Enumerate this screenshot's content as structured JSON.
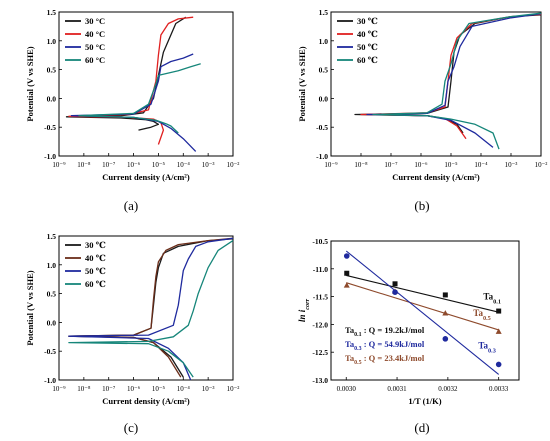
{
  "chart_data": [
    {
      "type": "line",
      "panel_label": "(a)",
      "xlabel": "Current density (A/cm²)",
      "ylabel": "Potential (V vs SHE)",
      "xscale": "log",
      "xlim": [
        -9,
        -2
      ],
      "ylim": [
        -1.0,
        1.5
      ],
      "xticks": [
        -9,
        -8,
        -7,
        -6,
        -5,
        -4,
        -3,
        -2
      ],
      "xtick_labels": [
        "10⁻⁹",
        "10⁻⁸",
        "10⁻⁷",
        "10⁻⁶",
        "10⁻⁵",
        "10⁻⁴",
        "10⁻³",
        "10⁻²"
      ],
      "yticks": [
        -1.0,
        -0.5,
        0.0,
        0.5,
        1.0,
        1.5
      ],
      "ytick_labels": [
        "-1.0",
        "-0.5",
        "0.0",
        "0.5",
        "1.0",
        "1.5"
      ],
      "legend_position": "top-left",
      "series": [
        {
          "name": "30 °C",
          "color": "#1a1a1a",
          "x": [
            -5.8,
            -5.3,
            -5.0,
            -5.2,
            -5.5,
            -6.5,
            -8.7,
            -6.5,
            -5.6,
            -5.2,
            -4.8,
            -4.3,
            -3.9
          ],
          "y": [
            -0.55,
            -0.5,
            -0.45,
            -0.4,
            -0.37,
            -0.34,
            -0.32,
            -0.3,
            -0.25,
            0.0,
            0.8,
            1.3,
            1.41
          ]
        },
        {
          "name": "40 °C",
          "color": "#e02020",
          "x": [
            -5.0,
            -4.8,
            -4.9,
            -5.2,
            -6.2,
            -8.6,
            -6.2,
            -5.4,
            -5.1,
            -5.0,
            -4.9,
            -4.6,
            -4.2,
            -3.6
          ],
          "y": [
            -0.8,
            -0.55,
            -0.42,
            -0.36,
            -0.33,
            -0.31,
            -0.28,
            -0.2,
            0.3,
            0.75,
            1.1,
            1.3,
            1.38,
            1.41
          ]
        },
        {
          "name": "50 °C",
          "color": "#1f2a9e",
          "x": [
            -3.5,
            -4.0,
            -4.5,
            -5.0,
            -6.0,
            -8.5,
            -6.0,
            -5.3,
            -5.0,
            -4.9,
            -4.5,
            -4.0,
            -3.6
          ],
          "y": [
            -0.92,
            -0.7,
            -0.52,
            -0.4,
            -0.33,
            -0.3,
            -0.27,
            -0.1,
            0.3,
            0.55,
            0.64,
            0.7,
            0.77
          ]
        },
        {
          "name": "60 °C",
          "color": "#16867a",
          "x": [
            -4.2,
            -4.5,
            -4.7,
            -5.1,
            -6.0,
            -8.2,
            -6.0,
            -5.4,
            -5.1,
            -5.0,
            -4.7,
            -4.2,
            -3.7,
            -3.3
          ],
          "y": [
            -0.6,
            -0.48,
            -0.44,
            -0.38,
            -0.33,
            -0.3,
            -0.26,
            -0.1,
            0.25,
            0.4,
            0.43,
            0.48,
            0.55,
            0.6
          ]
        }
      ]
    },
    {
      "type": "line",
      "panel_label": "(b)",
      "xlabel": "Current density (A/cm²)",
      "ylabel": "Potential (V vs SHE)",
      "xscale": "log",
      "xlim": [
        -9,
        -2
      ],
      "ylim": [
        -1.0,
        1.5
      ],
      "xticks": [
        -9,
        -8,
        -7,
        -6,
        -5,
        -4,
        -3,
        -2
      ],
      "xtick_labels": [
        "10⁻⁹",
        "10⁻⁸",
        "10⁻⁷",
        "10⁻⁶",
        "10⁻⁵",
        "10⁻⁴",
        "10⁻³",
        "10⁻²"
      ],
      "yticks": [
        -1.0,
        -0.5,
        0.0,
        0.5,
        1.0,
        1.5
      ],
      "ytick_labels": [
        "-1.0",
        "-0.5",
        "0.0",
        "0.5",
        "1.0",
        "1.5"
      ],
      "legend_position": "top-left",
      "series": [
        {
          "name": "30 ℃",
          "color": "#1a1a1a",
          "x": [
            -4.6,
            -4.8,
            -5.2,
            -5.8,
            -8.2,
            -5.8,
            -5.1,
            -5.0,
            -4.9,
            -4.7,
            -4.2,
            -3.0,
            -2.0
          ],
          "y": [
            -0.6,
            -0.45,
            -0.35,
            -0.3,
            -0.28,
            -0.26,
            -0.15,
            0.3,
            0.8,
            1.1,
            1.3,
            1.42,
            1.45
          ]
        },
        {
          "name": "40 ℃",
          "color": "#e02020",
          "x": [
            -4.5,
            -4.8,
            -5.2,
            -5.8,
            -8.0,
            -5.8,
            -5.2,
            -5.1,
            -5.0,
            -4.8,
            -4.3,
            -3.0,
            -2.0
          ],
          "y": [
            -0.7,
            -0.48,
            -0.35,
            -0.3,
            -0.28,
            -0.25,
            -0.15,
            0.3,
            0.75,
            1.05,
            1.3,
            1.42,
            1.46
          ]
        },
        {
          "name": "50 ℃",
          "color": "#1f2a9e",
          "x": [
            -3.6,
            -4.2,
            -5.0,
            -5.8,
            -7.8,
            -5.8,
            -5.2,
            -5.1,
            -4.9,
            -4.7,
            -4.3,
            -3.0,
            -2.0
          ],
          "y": [
            -0.85,
            -0.6,
            -0.38,
            -0.3,
            -0.28,
            -0.26,
            -0.12,
            0.3,
            0.55,
            0.9,
            1.25,
            1.4,
            1.47
          ]
        },
        {
          "name": "60 ℃",
          "color": "#16867a",
          "x": [
            -3.4,
            -3.6,
            -4.2,
            -5.0,
            -5.8,
            -7.6,
            -5.8,
            -5.3,
            -5.2,
            -5.0,
            -4.8,
            -4.4,
            -3.0,
            -2.0
          ],
          "y": [
            -0.88,
            -0.6,
            -0.45,
            -0.36,
            -0.3,
            -0.28,
            -0.25,
            -0.1,
            0.3,
            0.6,
            1.0,
            1.3,
            1.42,
            1.48
          ]
        }
      ]
    },
    {
      "type": "line",
      "panel_label": "(c)",
      "xlabel": "Current density (A/cm²)",
      "ylabel": "Potential (V vs SHE)",
      "xscale": "log",
      "xlim": [
        -9,
        -2
      ],
      "ylim": [
        -1.0,
        1.5
      ],
      "xticks": [
        -9,
        -8,
        -7,
        -6,
        -5,
        -4,
        -3,
        -2
      ],
      "xtick_labels": [
        "10⁻⁹",
        "10⁻⁸",
        "10⁻⁷",
        "10⁻⁶",
        "10⁻⁵",
        "10⁻⁴",
        "10⁻³",
        "10⁻²"
      ],
      "yticks": [
        -1.0,
        -0.5,
        0.0,
        0.5,
        1.0,
        1.5
      ],
      "ytick_labels": [
        "-1.0",
        "-0.5",
        "0.0",
        "0.5",
        "1.0",
        "1.5"
      ],
      "legend_position": "top-left",
      "series": [
        {
          "name": "30 ℃",
          "color": "#1a1a1a",
          "x": [
            -4.0,
            -4.5,
            -5.2,
            -6.0,
            -8.6,
            -6.0,
            -5.3,
            -5.2,
            -5.1,
            -5.0,
            -4.8,
            -4.2,
            -3.0,
            -2.0
          ],
          "y": [
            -0.95,
            -0.6,
            -0.35,
            -0.26,
            -0.24,
            -0.22,
            -0.1,
            0.3,
            0.7,
            0.95,
            1.2,
            1.32,
            1.42,
            1.45
          ]
        },
        {
          "name": "40 ℃",
          "color": "#6b2e1a",
          "x": [
            -4.1,
            -4.6,
            -5.2,
            -6.0,
            -8.6,
            -6.0,
            -5.3,
            -5.2,
            -5.1,
            -5.0,
            -4.7,
            -4.2,
            -3.0,
            -2.0
          ],
          "y": [
            -0.95,
            -0.6,
            -0.35,
            -0.26,
            -0.24,
            -0.22,
            -0.1,
            0.4,
            0.8,
            1.05,
            1.25,
            1.35,
            1.42,
            1.46
          ]
        },
        {
          "name": "50 ℃",
          "color": "#1f2a9e",
          "x": [
            -3.7,
            -4.0,
            -4.6,
            -5.4,
            -8.6,
            -5.4,
            -4.4,
            -4.2,
            -4.1,
            -4.0,
            -3.8,
            -3.5,
            -3.0,
            -2.0
          ],
          "y": [
            -1.0,
            -0.7,
            -0.45,
            -0.28,
            -0.24,
            -0.22,
            -0.05,
            0.3,
            0.6,
            0.9,
            1.1,
            1.32,
            1.4,
            1.46
          ]
        },
        {
          "name": "60 ℃",
          "color": "#16867a",
          "x": [
            -3.6,
            -4.0,
            -4.6,
            -5.4,
            -8.6,
            -5.4,
            -4.4,
            -3.8,
            -3.6,
            -3.4,
            -3.0,
            -2.6,
            -2.0
          ],
          "y": [
            -0.95,
            -0.7,
            -0.5,
            -0.37,
            -0.35,
            -0.33,
            -0.25,
            -0.05,
            0.2,
            0.5,
            0.95,
            1.25,
            1.42
          ]
        }
      ]
    },
    {
      "type": "scatter",
      "panel_label": "(d)",
      "xlabel": "1/T (1/K)",
      "ylabel": "ln i",
      "ylabel_sub": "corr",
      "xlim": [
        0.00297,
        0.00334
      ],
      "ylim": [
        -13.0,
        -10.5
      ],
      "xticks": [
        0.003,
        0.0031,
        0.0032,
        0.0033
      ],
      "xtick_labels": [
        "0.0030",
        "0.0031",
        "0.0032",
        "0.0033"
      ],
      "yticks": [
        -13.0,
        -12.5,
        -12.0,
        -11.5,
        -11.0,
        -10.5
      ],
      "ytick_labels": [
        "-13.0",
        "-12.5",
        "-12.0",
        "-11.5",
        "-11.0",
        "-10.5"
      ],
      "series": [
        {
          "name": "Ta0.1",
          "label": "Ta",
          "label_sub": "0.1",
          "color": "#111111",
          "marker": "square",
          "x": [
            0.003001,
            0.003096,
            0.003195,
            0.0033
          ],
          "y": [
            -11.08,
            -11.27,
            -11.47,
            -11.76
          ],
          "fit": [
            -11.12,
            -11.78
          ],
          "label_at": [
            0.00327,
            -11.55
          ]
        },
        {
          "name": "Ta0.5",
          "label": "Ta",
          "label_sub": "0.5",
          "color": "#8e4a2c",
          "marker": "triangle",
          "x": [
            0.003001,
            0.003096,
            0.003195,
            0.0033
          ],
          "y": [
            -11.3,
            -11.41,
            -11.8,
            -12.13
          ],
          "fit": [
            -11.25,
            -12.1
          ],
          "label_at": [
            0.00325,
            -11.85
          ]
        },
        {
          "name": "Ta0.3",
          "label": "Ta",
          "label_sub": "0.3",
          "color": "#1f2a9e",
          "marker": "circle",
          "x": [
            0.003001,
            0.003096,
            0.003195,
            0.0033
          ],
          "y": [
            -10.77,
            -11.42,
            -12.26,
            -12.72
          ],
          "fit": [
            -10.68,
            -12.9
          ],
          "label_at": [
            0.00326,
            -12.43
          ]
        }
      ],
      "annotations": [
        {
          "label": "Ta",
          "sub": "0.1",
          "text": " : Q = 19.2kJ/mol",
          "color": "#111111"
        },
        {
          "label": "Ta",
          "sub": "0.3",
          "text": " : Q = 54.9kJ/mol",
          "color": "#1f2a9e"
        },
        {
          "label": "Ta",
          "sub": "0.5",
          "text": " : Q = 23.4kJ/mol",
          "color": "#8e4a2c"
        }
      ]
    }
  ]
}
